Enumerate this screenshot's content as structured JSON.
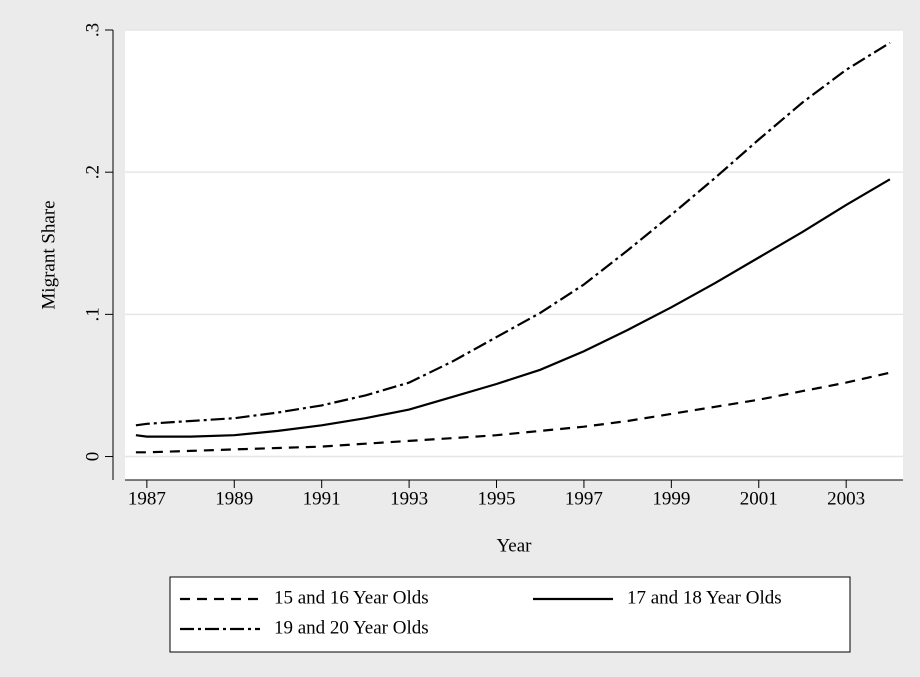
{
  "chart_data": {
    "type": "line",
    "x_label": "Year",
    "y_label": "Migrant Share",
    "x": [
      1986.75,
      1987,
      1988,
      1989,
      1990,
      1991,
      1992,
      1993,
      1994,
      1995,
      1996,
      1997,
      1998,
      1999,
      2000,
      2001,
      2002,
      2003,
      2004
    ],
    "series": [
      {
        "name": "15 and 16 Year Olds",
        "color": "#000000",
        "dash": "10,7",
        "values": [
          0.003,
          0.003,
          0.004,
          0.005,
          0.006,
          0.007,
          0.009,
          0.011,
          0.013,
          0.015,
          0.018,
          0.021,
          0.025,
          0.03,
          0.035,
          0.04,
          0.046,
          0.052,
          0.059
        ]
      },
      {
        "name": "17 and 18 Year Olds",
        "color": "#000000",
        "dash": "none",
        "values": [
          0.015,
          0.014,
          0.014,
          0.015,
          0.018,
          0.022,
          0.027,
          0.033,
          0.042,
          0.051,
          0.061,
          0.074,
          0.089,
          0.105,
          0.122,
          0.14,
          0.158,
          0.177,
          0.195
        ]
      },
      {
        "name": "19 and 20 Year Olds",
        "color": "#000000",
        "dash": "14,4,3,4",
        "values": [
          0.022,
          0.023,
          0.025,
          0.027,
          0.031,
          0.036,
          0.043,
          0.052,
          0.067,
          0.084,
          0.101,
          0.121,
          0.145,
          0.17,
          0.196,
          0.223,
          0.249,
          0.272,
          0.291
        ]
      }
    ],
    "xlim": [
      1986.5,
      2004.3
    ],
    "xticks": [
      1987,
      1989,
      1991,
      1993,
      1995,
      1997,
      1999,
      2001,
      2003
    ],
    "ylim": [
      -0.0165,
      0.3
    ],
    "yticks": [
      {
        "value": 0,
        "label": "0"
      },
      {
        "value": 0.1,
        "label": ".1"
      },
      {
        "value": 0.2,
        "label": ".2"
      },
      {
        "value": 0.3,
        "label": ".3"
      }
    ],
    "grid": true
  }
}
